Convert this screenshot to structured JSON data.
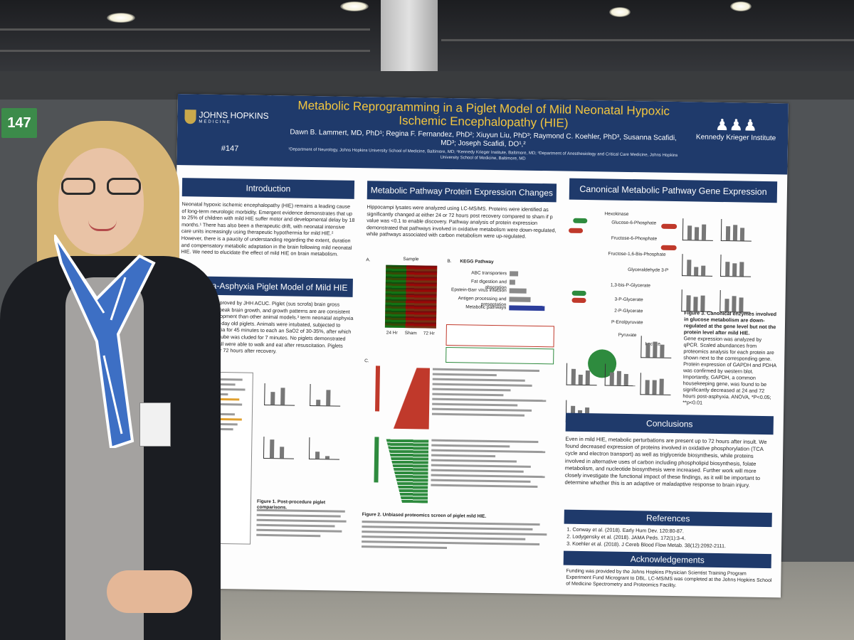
{
  "booth_number": "147",
  "poster": {
    "title": "Metabolic Reprogramming in a Piglet Model of Mild Neonatal Hypoxic Ischemic Encephalopathy (HIE)",
    "authors": "Dawn B. Lammert, MD, PhD¹; Regina F. Fernandez, PhD²; Xiuyun Liu, PhD³; Raymond C. Koehler, PhD³, Susanna Scafidi, MD³; Joseph Scafidi, DO¹,²",
    "affiliations": "¹Department of Neurology, Johns Hopkins University School of Medicine, Baltimore, MD; ²Kennedy Krieger Institute, Baltimore, MD; ³Department of Anesthesiology and Critical Care Medicine, Johns Hopkins University School of Medicine, Baltimore, MD",
    "left_logo_line1": "JOHNS HOPKINS",
    "left_logo_line2": "MEDICINE",
    "poster_id": "#147",
    "right_logo": "Kennedy Krieger Institute",
    "sections": {
      "introduction": {
        "heading": "Introduction",
        "text": "Neonatal hypoxic ischemic encephalopathy (HIE) remains a leading cause of long-term neurologic morbidity. Emergent evidence demonstrates that up to 25% of children with mild HIE suffer motor and developmental delay by 18 months.¹ There has also been a therapeutic drift, with neonatal intensive care units increasingly using therapeutic hypothermia for mild HIE.² However, there is a paucity of understanding regarding the extent, duration and compensatory metabolic adaptation in the brain following mild neonatal HIE. We need to elucidate the effect of mild HIE on brain metabolism."
      },
      "model": {
        "heading": "Hypoxia-Asphyxia Piglet Model of Mild HIE",
        "text": "methods were approved by JHH ACUC. Piglet (sus scrofa) brain gross anatomy, time to peak brain growth, and growth patterns are are consistent with human development than other animal models.³ term neonatal asphyxia was modeled in 3-day old piglets. Animals were intubated, subjected to whole-body hypoxia for 45 minutes to each an SaO2 of 30-35%, after which the endotracheal tube was cluded for 7 minutes. No piglets demonstrated clinical seizures, all were able to walk and eat after resuscitation. Piglets were ficed at 24 or 72 hours after recovery.",
        "figure_caption": "Figure 1. Post-procedure piglet comparisons."
      },
      "protein": {
        "heading": "Metabolic Pathway Protein Expression Changes",
        "text": "Hippocampi lysates were analyzed using LC-MS/MS. Proteins were identified as significantly changed at either 24 or 72 hours post recovery compared to sham if p value was <0.1 to enable discovery. Pathway analysis of protein expression demonstrated that pathways involved in oxidative metabolism were down-regulated, while pathways associated with carbon metabolism were up-regulated.",
        "panel_a": "A.",
        "panel_b": "B.",
        "panel_c": "C.",
        "heatmap_label": "Sample",
        "heatmap_cols": [
          "24 Hr",
          "Sham",
          "72 Hr"
        ],
        "kegg_label": "KEGG Pathway",
        "kegg_rows": [
          "ABC transporters",
          "Fat digestion and absorption",
          "Epstein-Barr virus infection",
          "Antigen processing and presentation",
          "Metabolic pathways"
        ],
        "figure_caption": "Figure 2. Unbiased proteomics screen of piglet mild HIE."
      },
      "gene": {
        "heading": "Canonical Metabolic Pathway Gene Expression",
        "figure_caption": "Figure 3. Canonical enzymes involved in glucose metabolism are down-regulated at the gene level but not the protein level after mild HIE.",
        "figure_text": "Gene expression was analyzed by qPCR. Scaled abundances from proteomics analysis for each protein are shown next to the corresponding gene. Protein expression of GAPDH and PDHA was confirmed by western blot. Importantly, GAPDH, a common housekeeping gene, was found to be significantly decreased at 24 and 72 hours post-asphyxia. ANOVA, *P<0.05; **p<0.01",
        "pathway_nodes": [
          "Hexokinase",
          "Glucose-6-Phosphate",
          "Fructose-6-Phosphate",
          "Fructose-1,6-Bis-Phosphate",
          "Glyceraldehyde 3-P",
          "1,3-bis-P-Glycerate",
          "3-P-Glycerate",
          "2-P-Glycerate",
          "P-Enolpyruvate",
          "Pyruvate",
          "Lactate"
        ]
      },
      "conclusions": {
        "heading": "Conclusions",
        "text": "Even in mild HIE, metabolic perturbations are present up to 72 hours after insult. We found decreased expression of proteins involved in oxidative phosphorylation (TCA cycle and electron transport) as well as triglyceride biosynthesis, while proteins involved in alternative uses of carbon including phospholipid biosynthesis, folate metabolism, and nucleotide biosynthesis were increased. Further work will more closely investigate the functional impact of these findings, as it will be important to determine whether this is an adaptive or maladaptive response to brain injury."
      },
      "references": {
        "heading": "References",
        "items": [
          "1. Conway et al. (2018). Early Hum Dev. 120:80-87.",
          "2. Lodygensky et al. (2018). JAMA Peds. 172(1):3-4.",
          "3. Koehler et al. (2018). J Cereb Blood Flow Metab. 38(12):2092-2111."
        ]
      },
      "acknowledgements": {
        "heading": "Acknowledgements",
        "text": "Funding was provided by the Johns Hopkins Physician Scientist Training Program Experiment Fund Microgrant to DBL. LC-MS/MS was completed at the Johns Hopkins School of Medicine Spectrometry and Proteomics Facility."
      }
    }
  },
  "colors": {
    "poster_header": "#1f3a6b",
    "title_gold": "#f3c63f",
    "booth_tag": "#3c8b4a",
    "up_red": "#c0392b",
    "down_green": "#2e8b3e"
  }
}
